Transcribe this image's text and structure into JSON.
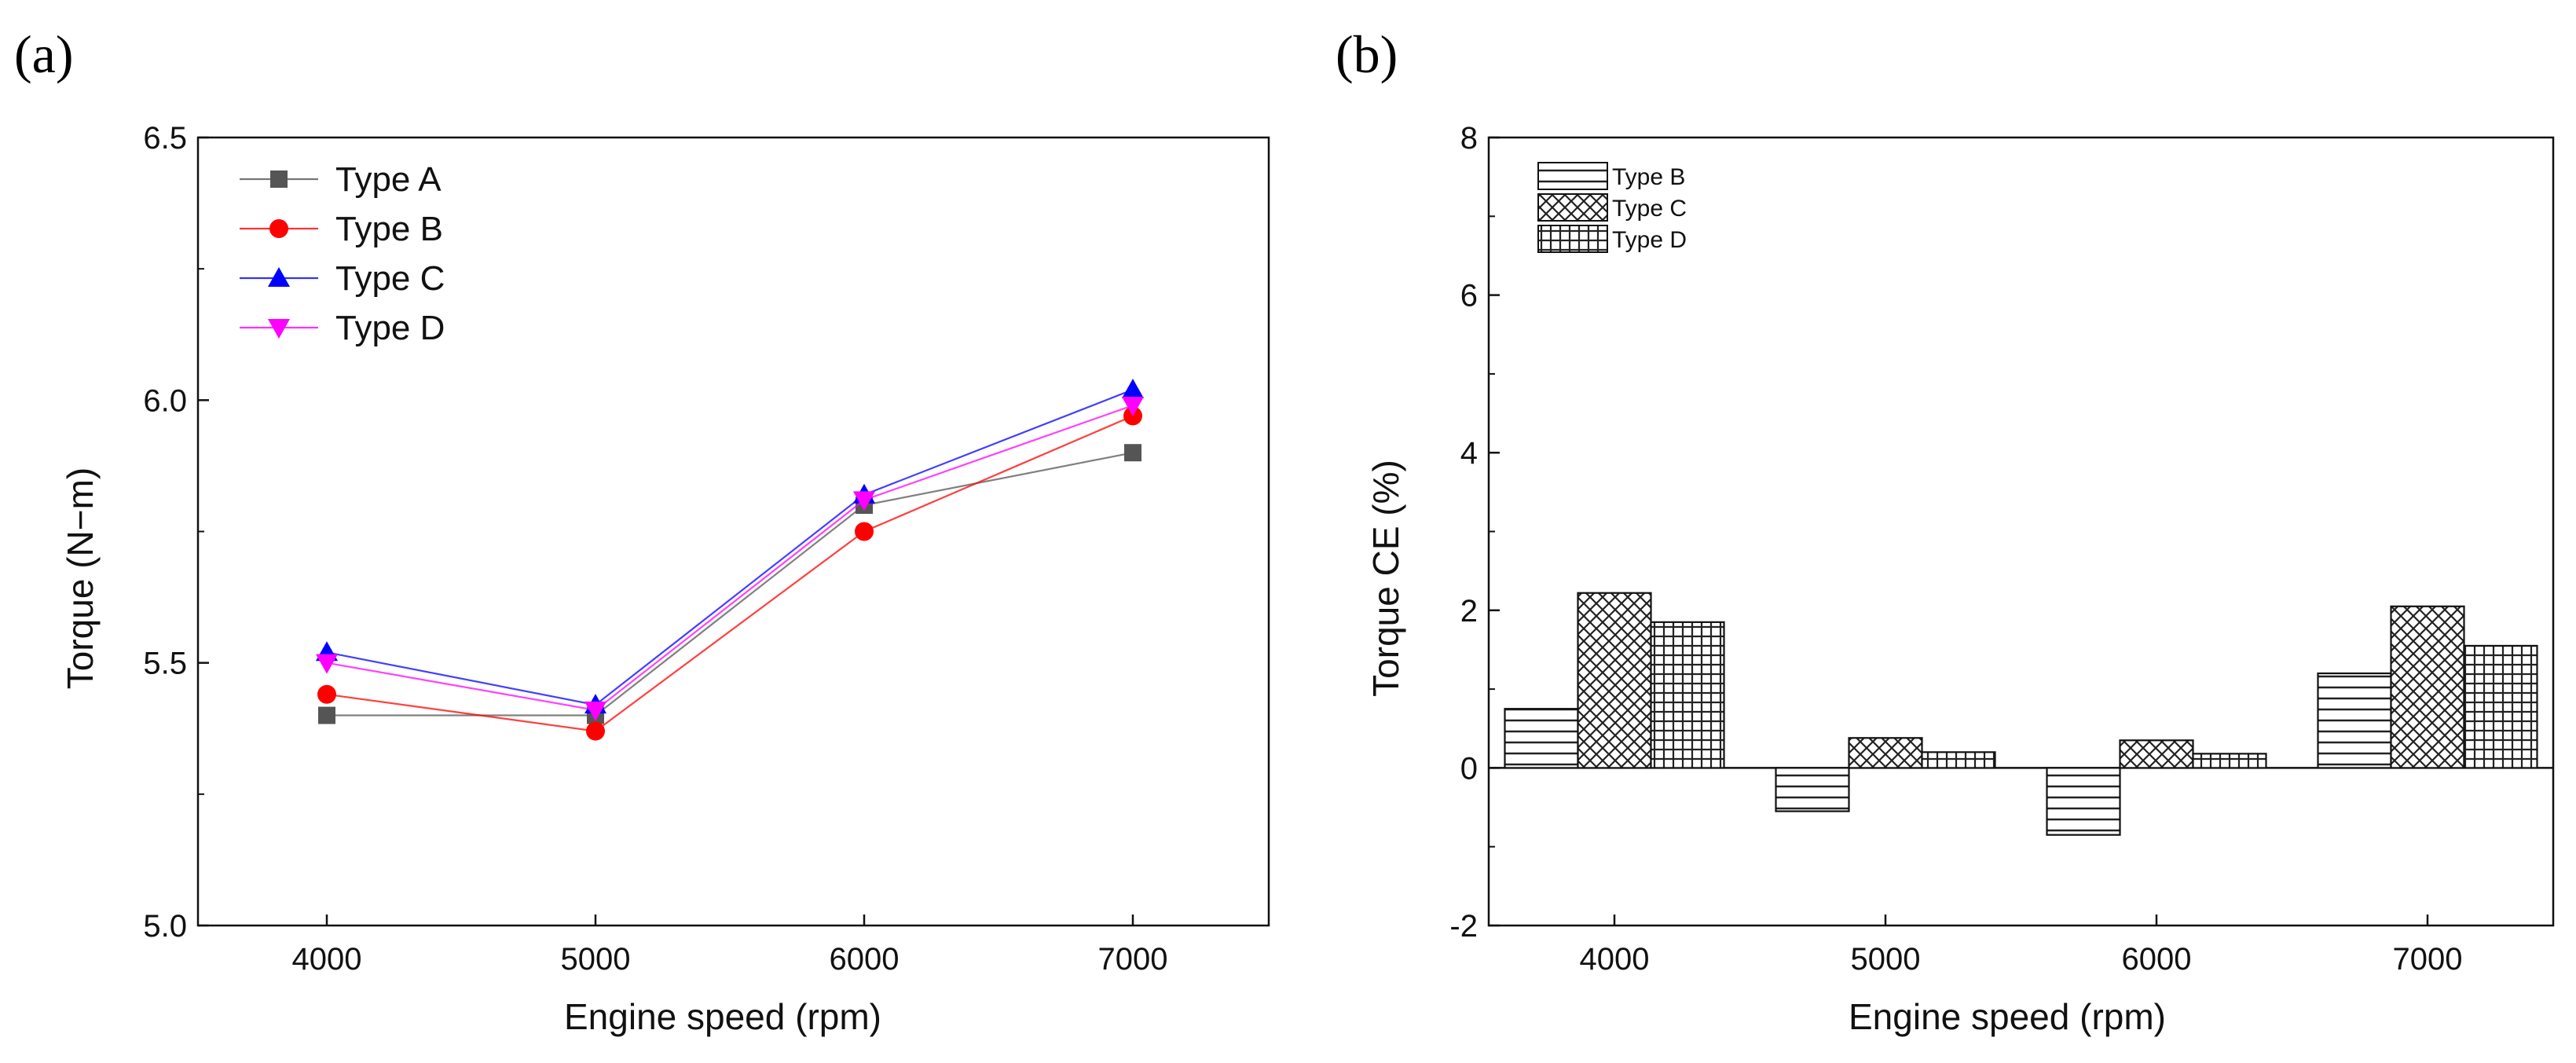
{
  "panels": {
    "a_label": "(a)",
    "b_label": "(b)"
  },
  "chart_data": [
    {
      "type": "line",
      "panel": "(a)",
      "title": "",
      "xlabel": "Engine speed (rpm)",
      "ylabel": "Torque (N−m)",
      "categories": [
        "4000",
        "5000",
        "6000",
        "7000"
      ],
      "yticks": [
        "5.0",
        "5.5",
        "6.0",
        "6.5"
      ],
      "ylim": [
        5.0,
        6.5
      ],
      "legend_position": "top-left",
      "grid": false,
      "series": [
        {
          "name": "Type A",
          "color": "#555555",
          "marker": "square",
          "values": [
            5.4,
            5.4,
            5.8,
            5.9
          ]
        },
        {
          "name": "Type B",
          "color": "#ff0000",
          "marker": "circle",
          "values": [
            5.44,
            5.37,
            5.75,
            5.97
          ]
        },
        {
          "name": "Type C",
          "color": "#0000ff",
          "marker": "triangle-up",
          "values": [
            5.52,
            5.42,
            5.82,
            6.02
          ]
        },
        {
          "name": "Type D",
          "color": "#ff00ff",
          "marker": "triangle-down",
          "values": [
            5.5,
            5.41,
            5.81,
            5.99
          ]
        }
      ]
    },
    {
      "type": "bar",
      "panel": "(b)",
      "title": "",
      "xlabel": "Engine speed (rpm)",
      "ylabel": "Torque CE (%)",
      "categories": [
        "4000",
        "5000",
        "6000",
        "7000"
      ],
      "yticks": [
        "-2",
        "0",
        "2",
        "4",
        "6",
        "8"
      ],
      "ylim": [
        -2,
        8
      ],
      "legend_position": "top-left",
      "grid": false,
      "series": [
        {
          "name": "Type B",
          "pattern": "horizontal-lines",
          "values": [
            0.75,
            -0.55,
            -0.85,
            1.2
          ]
        },
        {
          "name": "Type C",
          "pattern": "crosshatch",
          "values": [
            2.22,
            0.38,
            0.35,
            2.05
          ]
        },
        {
          "name": "Type D",
          "pattern": "grid",
          "values": [
            1.85,
            0.2,
            0.18,
            1.55
          ]
        }
      ]
    }
  ]
}
